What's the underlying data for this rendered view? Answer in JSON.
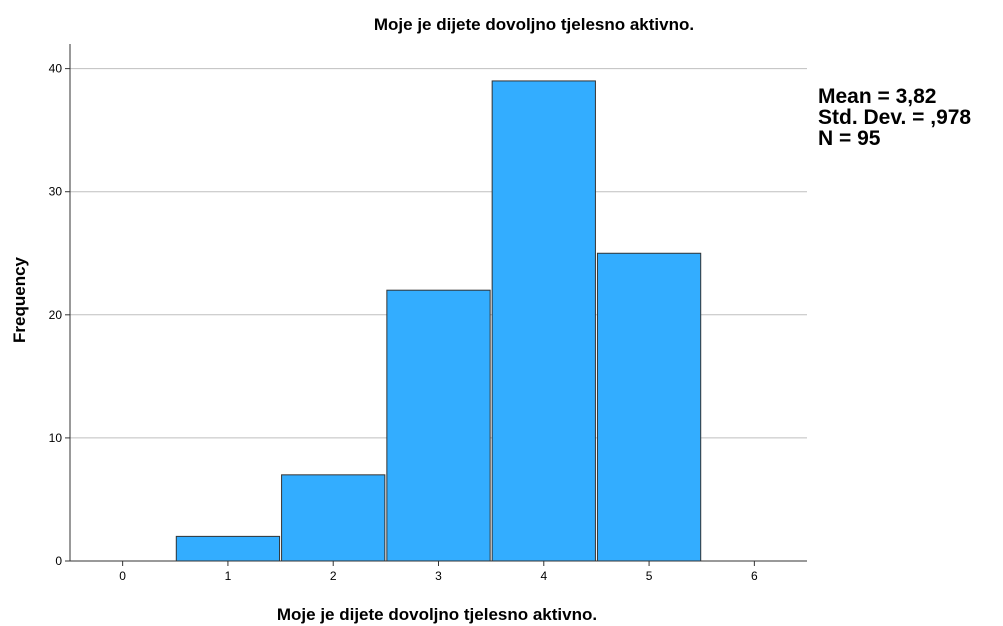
{
  "chart_data": {
    "type": "histogram",
    "title": "Moje je dijete dovoljno tjelesno aktivno.",
    "xlabel": "Moje je dijete dovoljno tjelesno aktivno.",
    "ylabel": "Frequency",
    "x_ticks": [
      "0",
      "1",
      "2",
      "3",
      "4",
      "5",
      "6"
    ],
    "y_ticks": [
      "0",
      "10",
      "20",
      "30",
      "40"
    ],
    "xlim": [
      -0.5,
      6.5
    ],
    "ylim": [
      0,
      42
    ],
    "grid": "horizontal",
    "bars": [
      {
        "x": 1,
        "value": 2
      },
      {
        "x": 2,
        "value": 7
      },
      {
        "x": 3,
        "value": 22
      },
      {
        "x": 4,
        "value": 39
      },
      {
        "x": 5,
        "value": 25
      }
    ],
    "bar_color": "#33adff",
    "bar_edge_color": "#333333",
    "gridline_color": "#bfbfbf"
  },
  "stats": {
    "mean": "Mean = 3,82",
    "std_dev": "Std. Dev. = ,978",
    "n": "N = 95"
  }
}
